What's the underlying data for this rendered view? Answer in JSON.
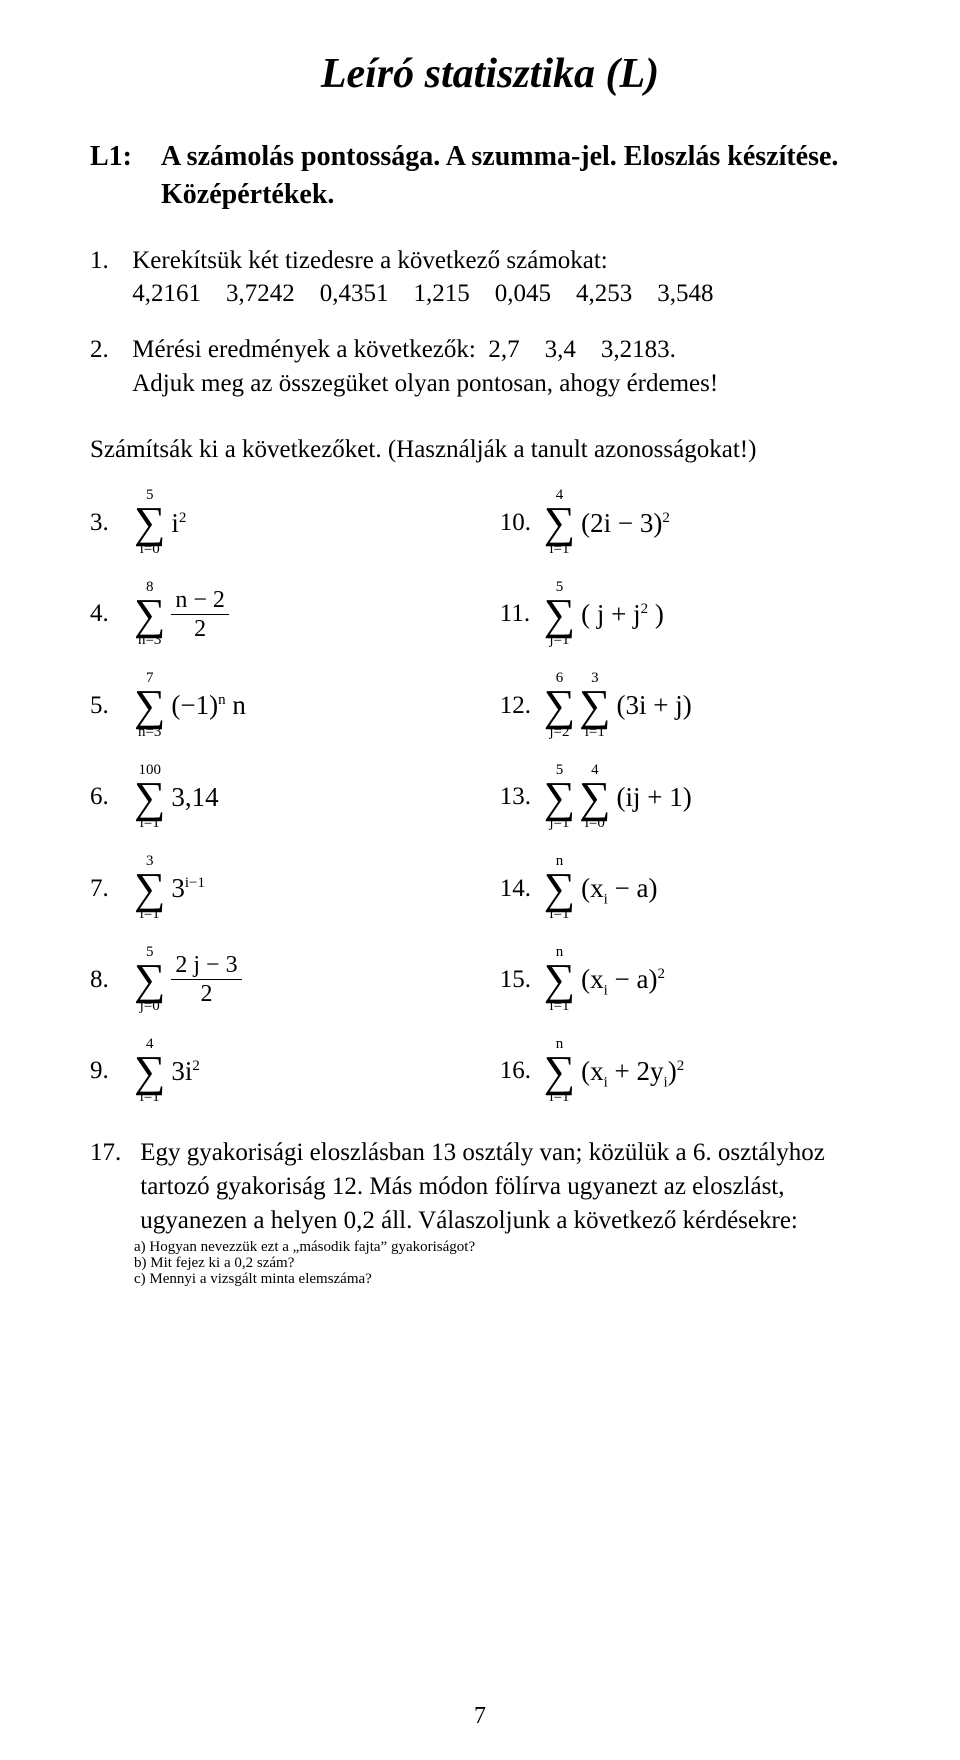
{
  "title": "Leíró statisztika (L)",
  "section": {
    "label": "L1:",
    "heading": "A számolás pontossága. A szumma-jel. Eloszlás készítése. Középértékek."
  },
  "q1": {
    "num": "1.",
    "line1": "Kerekítsük két tizedesre a következő számokat:",
    "line2": "4,2161    3,7242    0,4351    1,215    0,045    4,253    3,548"
  },
  "q2": {
    "num": "2.",
    "line1": "Mérési eredmények a következők:  2,7    3,4    3,2183.",
    "line2": "Adjuk meg az összegüket olyan pontosan, ahogy érdemes!"
  },
  "intro": "Számítsák ki a következőket. (Használják a tanult azonosságokat!)",
  "rows": {
    "r3": {
      "num": "3.",
      "top": "5",
      "bot": "i=0",
      "body_html": "i<sup>2</sup>"
    },
    "r10": {
      "num": "10.",
      "top": "4",
      "bot": "i=1",
      "body_html": "(2i − 3)<sup>2</sup>"
    },
    "r4": {
      "num": "4.",
      "top": "8",
      "bot": "n=3",
      "frac_num": "n − 2",
      "frac_den": "2"
    },
    "r11": {
      "num": "11.",
      "top": "5",
      "bot": "j=1",
      "body_html": "( j + j<sup>2</sup> )"
    },
    "r5": {
      "num": "5.",
      "top": "7",
      "bot": "n=3",
      "body_html": "(−1)<sup>n</sup> n"
    },
    "r12": {
      "num": "12.",
      "o_top": "6",
      "o_bot": "j=2",
      "i_top": "3",
      "i_bot": "i=1",
      "body_html": "(3i + j)"
    },
    "r6": {
      "num": "6.",
      "top": "100",
      "bot": "i=1",
      "body_html": "3,14"
    },
    "r13": {
      "num": "13.",
      "o_top": "5",
      "o_bot": "j=1",
      "i_top": "4",
      "i_bot": "i=0",
      "body_html": "(ij + 1)"
    },
    "r7": {
      "num": "7.",
      "top": "3",
      "bot": "i=1",
      "body_html": "3<sup>i−1</sup>"
    },
    "r14": {
      "num": "14.",
      "top": "n",
      "bot": "i=1",
      "body_html": "(x<sub>i</sub> − a)"
    },
    "r8": {
      "num": "8.",
      "top": "5",
      "bot": "j=0",
      "frac_num": "2 j − 3",
      "frac_den": "2"
    },
    "r15": {
      "num": "15.",
      "top": "n",
      "bot": "i=1",
      "body_html": "(x<sub>i</sub> − a)<sup>2</sup>"
    },
    "r9": {
      "num": "9.",
      "top": "4",
      "bot": "i=1",
      "body_html": "3i<sup>2</sup>"
    },
    "r16": {
      "num": "16.",
      "top": "n",
      "bot": "i=1",
      "body_html": "(x<sub>i</sub> + 2y<sub>i</sub>)<sup>2</sup>"
    }
  },
  "q17": {
    "num": "17.",
    "p1": "Egy gyakorisági eloszlásban 13 osztály van; közülük a 6. osztályhoz tartozó gyakoriság 12. Más módon fölírva ugyanezt az eloszlást, ugyanezen a helyen 0,2 áll. Válaszoljunk a következő kérdésekre:",
    "a": "a) Hogyan nevezzük ezt a „második fajta” gyakoriságot?",
    "b": "b) Mit fejez ki a 0,2 szám?",
    "c": "c) Mennyi a vizsgált minta elemszáma?"
  },
  "page_number": "7",
  "sigma": "∑"
}
